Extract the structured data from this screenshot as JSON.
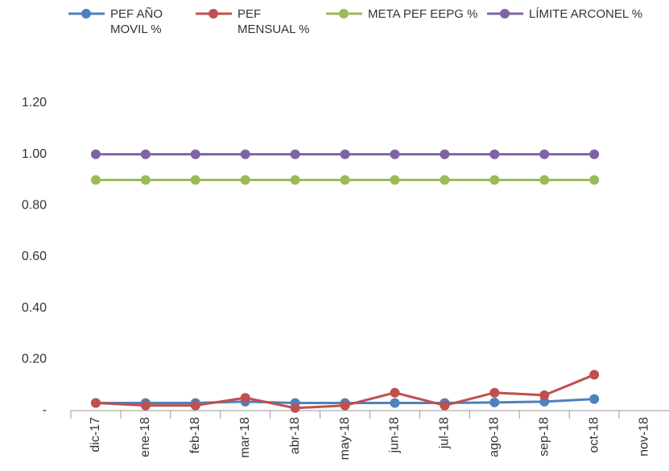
{
  "chart_data": {
    "type": "line",
    "categories": [
      "dic-17",
      "ene-18",
      "feb-18",
      "mar-18",
      "abr-18",
      "may-18",
      "jun-18",
      "jul-18",
      "ago-18",
      "sep-18",
      "oct-18",
      "nov-18"
    ],
    "series": [
      {
        "name": "PEF AÑO MOVIL %",
        "color": "#4f81bd",
        "values": [
          0.03,
          0.03,
          0.03,
          0.035,
          0.03,
          0.03,
          0.03,
          0.03,
          0.032,
          0.035,
          0.045,
          null
        ]
      },
      {
        "name": "PEF MENSUAL %",
        "color": "#c0504d",
        "values": [
          0.03,
          0.02,
          0.02,
          0.05,
          0.01,
          0.02,
          0.07,
          0.02,
          0.07,
          0.06,
          0.14,
          null
        ]
      },
      {
        "name": "META PEF EEPG %",
        "color": "#9bbb59",
        "values": [
          0.9,
          0.9,
          0.9,
          0.9,
          0.9,
          0.9,
          0.9,
          0.9,
          0.9,
          0.9,
          0.9,
          null
        ]
      },
      {
        "name": "LÍMITE ARCONEL %",
        "color": "#8064a2",
        "values": [
          1.0,
          1.0,
          1.0,
          1.0,
          1.0,
          1.0,
          1.0,
          1.0,
          1.0,
          1.0,
          1.0,
          null
        ]
      }
    ],
    "ylim": [
      0,
      1.2
    ],
    "yticks": [
      {
        "value": 0,
        "label": "-"
      },
      {
        "value": 0.2,
        "label": "0.20"
      },
      {
        "value": 0.4,
        "label": "0.40"
      },
      {
        "value": 0.6,
        "label": "0.60"
      },
      {
        "value": 0.8,
        "label": "0.80"
      },
      {
        "value": 1.0,
        "label": "1.00"
      },
      {
        "value": 1.2,
        "label": "1.20"
      }
    ],
    "grid": false,
    "legend": "top"
  }
}
